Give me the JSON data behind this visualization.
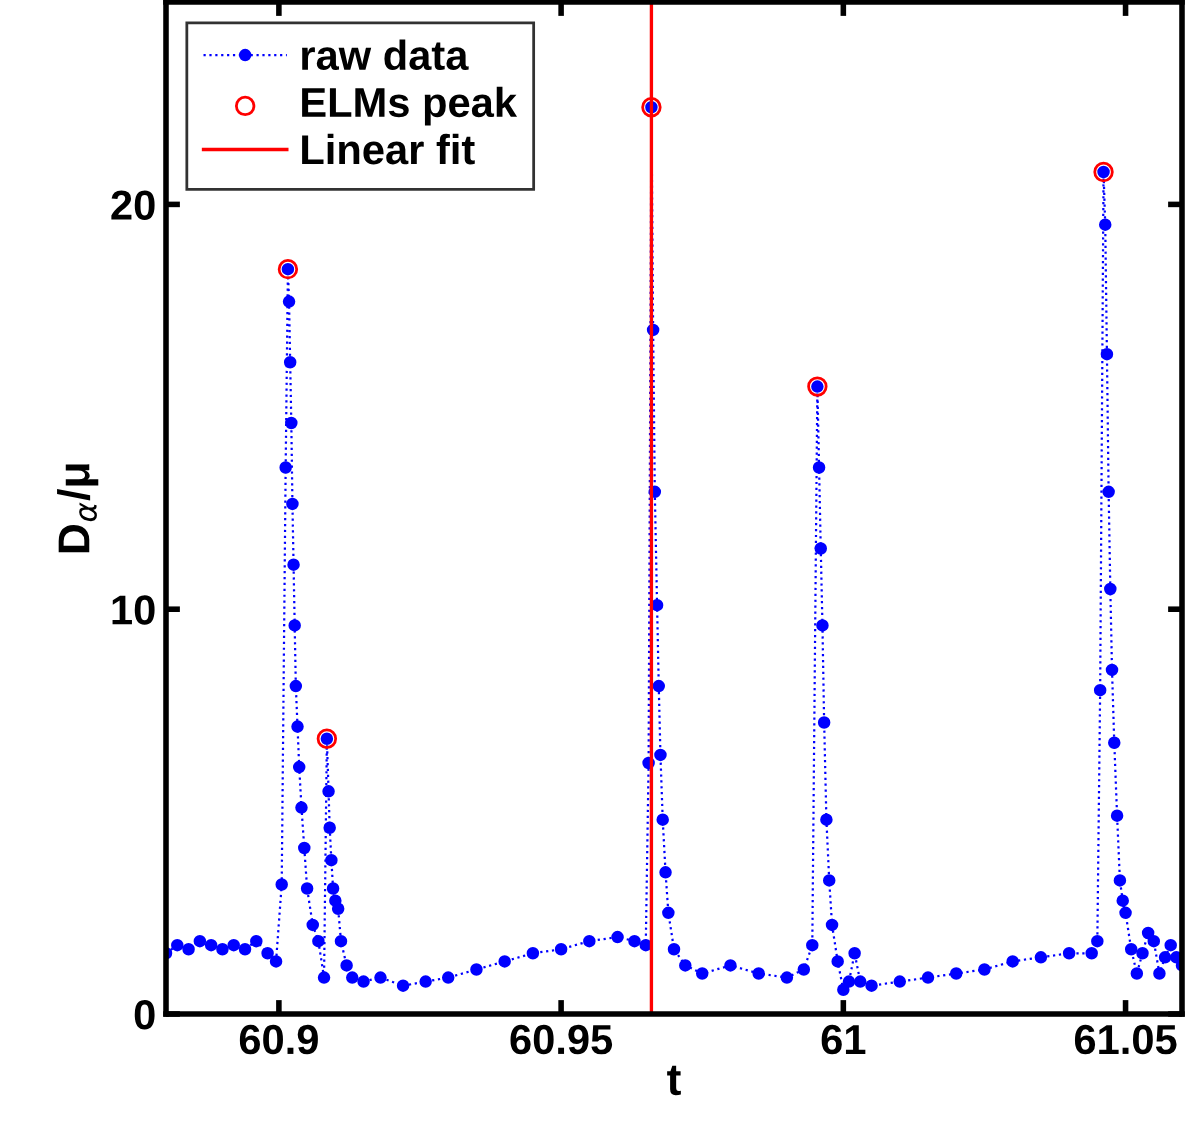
{
  "chart_data": {
    "type": "line",
    "xlabel": "t",
    "ylabel": "D$_{α}$/μ",
    "xlim": [
      60.88,
      61.06
    ],
    "ylim": [
      0,
      25
    ],
    "xticks": [
      60.9,
      60.95,
      61,
      61.05
    ],
    "yticks": [
      0,
      10,
      20
    ],
    "grid": false,
    "legend": "top left",
    "series": [
      {
        "name": "raw data",
        "color": "#0000ff",
        "marker": "circle",
        "line_style": "dotted",
        "x": [
          60.88,
          60.882,
          60.884,
          60.886,
          60.888,
          60.89,
          60.892,
          60.894,
          60.896,
          60.898,
          60.8995,
          60.9005,
          60.9012,
          60.9016,
          60.9018,
          60.902,
          60.9022,
          60.9024,
          60.9026,
          60.9028,
          60.903,
          60.9033,
          60.9036,
          60.904,
          60.9045,
          60.905,
          60.906,
          60.907,
          60.908,
          60.9085,
          60.9088,
          60.909,
          60.9093,
          60.9096,
          60.91,
          60.9105,
          60.911,
          60.912,
          60.913,
          60.915,
          60.918,
          60.922,
          60.926,
          60.93,
          60.935,
          60.94,
          60.945,
          60.95,
          60.955,
          60.96,
          60.963,
          60.965,
          60.9655,
          60.966,
          60.9663,
          60.9666,
          60.967,
          60.9673,
          60.9676,
          60.968,
          60.9685,
          60.969,
          60.97,
          60.972,
          60.975,
          60.98,
          60.985,
          60.99,
          60.993,
          60.9945,
          60.9954,
          60.9957,
          60.996,
          60.9963,
          60.9966,
          60.997,
          60.9975,
          60.998,
          60.999,
          61.0,
          61.001,
          61.002,
          61.003,
          61.005,
          61.01,
          61.015,
          61.02,
          61.025,
          61.03,
          61.035,
          61.04,
          61.044,
          61.045,
          61.0455,
          61.0461,
          61.0464,
          61.0467,
          61.047,
          61.0473,
          61.0476,
          61.048,
          61.0485,
          61.049,
          61.0495,
          61.05,
          61.051,
          61.052,
          61.053,
          61.054,
          61.055,
          61.056,
          61.057,
          61.058,
          61.059,
          61.06
        ],
        "values": [
          1.5,
          1.7,
          1.6,
          1.8,
          1.7,
          1.6,
          1.7,
          1.6,
          1.8,
          1.5,
          1.3,
          3.2,
          13.5,
          18.4,
          17.6,
          16.1,
          14.6,
          12.6,
          11.1,
          9.6,
          8.1,
          7.1,
          6.1,
          5.1,
          4.1,
          3.1,
          2.2,
          1.8,
          0.9,
          6.8,
          5.5,
          4.6,
          3.8,
          3.1,
          2.8,
          2.6,
          1.8,
          1.2,
          0.9,
          0.8,
          0.9,
          0.7,
          0.8,
          0.9,
          1.1,
          1.3,
          1.5,
          1.6,
          1.8,
          1.9,
          1.8,
          1.7,
          6.2,
          22.4,
          16.9,
          12.9,
          10.1,
          8.1,
          6.4,
          4.8,
          3.5,
          2.5,
          1.6,
          1.2,
          1.0,
          1.2,
          1.0,
          0.9,
          1.1,
          1.7,
          15.5,
          13.5,
          11.5,
          9.6,
          7.2,
          4.8,
          3.3,
          2.2,
          1.3,
          0.6,
          0.8,
          1.5,
          0.8,
          0.7,
          0.8,
          0.9,
          1.0,
          1.1,
          1.3,
          1.4,
          1.5,
          1.5,
          1.8,
          8.0,
          20.8,
          19.5,
          16.3,
          12.9,
          10.5,
          8.5,
          6.7,
          4.9,
          3.3,
          2.8,
          2.5,
          1.6,
          1.0,
          1.5,
          2.0,
          1.8,
          1.0,
          1.4,
          1.7,
          1.4,
          1.2
        ]
      },
      {
        "name": "ELMs peak",
        "type": "scatter",
        "color": "#ff0000",
        "marker": "circle",
        "x": [
          60.9016,
          60.9085,
          60.966,
          60.9954,
          61.0461
        ],
        "values": [
          18.4,
          6.8,
          22.4,
          15.5,
          20.8
        ]
      },
      {
        "name": "Linear fit",
        "color": "#ff0000",
        "marker": "none",
        "line_style": "solid",
        "x": [
          60.966,
          60.966
        ],
        "values": [
          0,
          25
        ]
      }
    ]
  }
}
